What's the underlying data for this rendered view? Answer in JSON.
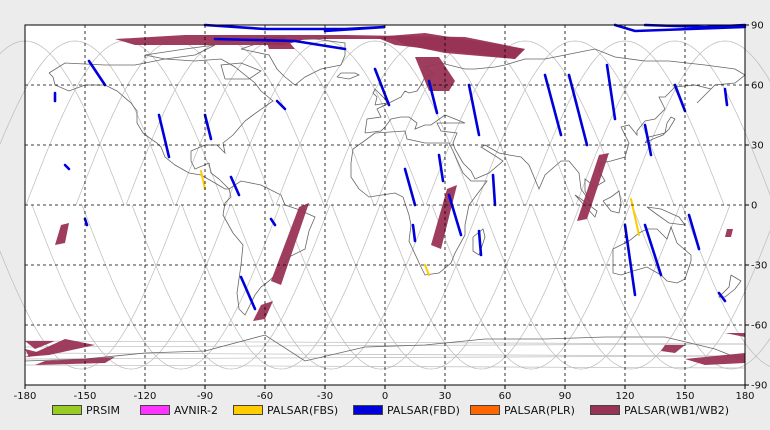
{
  "map": {
    "lon_range": [
      -180,
      180
    ],
    "lat_range": [
      -90,
      90
    ],
    "grid": "dashed",
    "x_ticks": [
      "-180",
      "-150",
      "-120",
      "-90",
      "-60",
      "-30",
      "0",
      "30",
      "60",
      "90",
      "120",
      "150",
      "180"
    ],
    "y_ticks": [
      "90",
      "60",
      "30",
      "0",
      "-30",
      "-60",
      "-90"
    ],
    "background_color": "#ffffff",
    "orbit_color": "#bbbbbb",
    "coastline_color": "#666666"
  },
  "legend": [
    {
      "label": "PRSIM",
      "color": "#99cc22"
    },
    {
      "label": "AVNIR-2",
      "color": "#ff33ff"
    },
    {
      "label": "PALSAR(FBS)",
      "color": "#ffcc00"
    },
    {
      "label": "PALSAR(FBD)",
      "color": "#0000dd"
    },
    {
      "label": "PALSAR(PLR)",
      "color": "#ff6600"
    },
    {
      "label": "PALSAR(WB1/WB2)",
      "color": "#993355"
    }
  ],
  "observations": {
    "wb": [
      {
        "lon": [
          -135,
          -125,
          -50,
          -40,
          5,
          10,
          30,
          65,
          70,
          40,
          -20,
          -100,
          -135
        ],
        "lat": [
          83,
          80,
          80,
          83,
          83,
          80,
          76,
          73,
          78,
          84,
          85,
          85,
          83
        ]
      },
      {
        "lon": [
          -60,
          -50,
          -45,
          -58,
          -60
        ],
        "lat": [
          84,
          84,
          78,
          78,
          84
        ]
      },
      {
        "lon": [
          -5,
          5,
          65,
          70,
          20,
          -5
        ],
        "lat": [
          84,
          80,
          73,
          78,
          86,
          84
        ]
      },
      {
        "lon": [
          15,
          27,
          35,
          32,
          22,
          15
        ],
        "lat": [
          74,
          74,
          62,
          57,
          57,
          74
        ]
      },
      {
        "lon": [
          -43,
          -38,
          -52,
          -57,
          -43
        ],
        "lat": [
          -1,
          1,
          -40,
          -38,
          -1
        ]
      },
      {
        "lon": [
          -62,
          -56,
          -60,
          -66,
          -62
        ],
        "lat": [
          -50,
          -48,
          -57,
          -58,
          -50
        ]
      },
      {
        "lon": [
          31,
          36,
          28,
          23,
          31
        ],
        "lat": [
          8,
          10,
          -22,
          -20,
          8
        ]
      },
      {
        "lon": [
          107,
          112,
          101,
          96,
          107
        ],
        "lat": [
          25,
          26,
          -7,
          -8,
          25
        ]
      },
      {
        "lon": [
          -162,
          -158,
          -160,
          -165,
          -162
        ],
        "lat": [
          -10,
          -9,
          -19,
          -20,
          -10
        ]
      },
      {
        "lon": [
          -180,
          -168,
          -145,
          -160,
          -180
        ],
        "lat": [
          -76,
          -75,
          -70,
          -67,
          -76
        ]
      },
      {
        "lon": [
          -180,
          -165,
          -175,
          -180
        ],
        "lat": [
          -68,
          -68,
          -72,
          -68
        ]
      },
      {
        "lon": [
          -170,
          -135,
          -140,
          -175,
          -170
        ],
        "lat": [
          -78,
          -76,
          -79,
          -80,
          -78
        ]
      },
      {
        "lon": [
          150,
          180,
          180,
          160,
          150
        ],
        "lat": [
          -77,
          -74,
          -79,
          -80,
          -77
        ]
      },
      {
        "lon": [
          140,
          150,
          145,
          138,
          140
        ],
        "lat": [
          -70,
          -70,
          -74,
          -73,
          -70
        ]
      },
      {
        "lon": [
          170,
          180,
          180,
          170
        ],
        "lat": [
          -64,
          -64,
          -66,
          -64
        ]
      },
      {
        "lon": [
          -180,
          -172,
          -178,
          -180
        ],
        "lat": [
          -72,
          -74,
          -76,
          -72
        ]
      },
      {
        "lon": [
          171,
          174,
          173,
          170,
          171
        ],
        "lat": [
          -12,
          -12,
          -16,
          -16,
          -12
        ]
      }
    ],
    "fbd": [
      [
        [
          -148,
          72
        ],
        [
          -140,
          60
        ]
      ],
      [
        [
          -165,
          56
        ],
        [
          -165,
          52
        ]
      ],
      [
        [
          -113,
          45
        ],
        [
          -108,
          24
        ]
      ],
      [
        [
          -90,
          45
        ],
        [
          -87,
          33
        ]
      ],
      [
        [
          -77,
          14
        ],
        [
          -73,
          5
        ]
      ],
      [
        [
          -57,
          -7
        ],
        [
          -55,
          -10
        ]
      ],
      [
        [
          -72,
          -36
        ],
        [
          -65,
          -52
        ]
      ],
      [
        [
          -54,
          52
        ],
        [
          -50,
          48
        ]
      ],
      [
        [
          -160,
          20
        ],
        [
          -158,
          18
        ]
      ],
      [
        [
          -150,
          -7
        ],
        [
          -149,
          -10
        ]
      ],
      [
        [
          -90,
          90
        ],
        [
          -60,
          88
        ],
        [
          -20,
          88
        ],
        [
          0,
          89
        ],
        [
          -30,
          87
        ]
      ],
      [
        [
          -85,
          83
        ],
        [
          -45,
          82
        ],
        [
          -20,
          78
        ]
      ],
      [
        [
          -5,
          68
        ],
        [
          2,
          50
        ]
      ],
      [
        [
          10,
          18
        ],
        [
          15,
          0
        ]
      ],
      [
        [
          14,
          -10
        ],
        [
          15,
          -18
        ]
      ],
      [
        [
          22,
          62
        ],
        [
          26,
          46
        ]
      ],
      [
        [
          27,
          25
        ],
        [
          29,
          12
        ]
      ],
      [
        [
          42,
          60
        ],
        [
          47,
          35
        ]
      ],
      [
        [
          54,
          15
        ],
        [
          55,
          0
        ]
      ],
      [
        [
          32,
          5
        ],
        [
          38,
          -15
        ]
      ],
      [
        [
          47,
          -13
        ],
        [
          48,
          -25
        ]
      ],
      [
        [
          80,
          65
        ],
        [
          88,
          35
        ]
      ],
      [
        [
          92,
          65
        ],
        [
          101,
          30
        ]
      ],
      [
        [
          111,
          70
        ],
        [
          115,
          43
        ]
      ],
      [
        [
          130,
          40
        ],
        [
          133,
          25
        ]
      ],
      [
        [
          120,
          -10
        ],
        [
          125,
          -45
        ]
      ],
      [
        [
          130,
          -10
        ],
        [
          138,
          -35
        ]
      ],
      [
        [
          152,
          -5
        ],
        [
          157,
          -22
        ]
      ],
      [
        [
          167,
          -44
        ],
        [
          170,
          -48
        ]
      ],
      [
        [
          145,
          60
        ],
        [
          150,
          47
        ]
      ],
      [
        [
          170,
          58
        ],
        [
          171,
          50
        ]
      ],
      [
        [
          130,
          90
        ],
        [
          160,
          89
        ],
        [
          180,
          90
        ]
      ],
      [
        [
          115,
          90
        ],
        [
          125,
          87
        ],
        [
          180,
          89
        ]
      ]
    ],
    "fbs": [
      [
        [
          -92,
          17
        ],
        [
          -90,
          8
        ]
      ],
      [
        [
          123,
          3
        ],
        [
          127,
          -15
        ]
      ],
      [
        [
          20,
          -30
        ],
        [
          22,
          -35
        ]
      ]
    ]
  }
}
